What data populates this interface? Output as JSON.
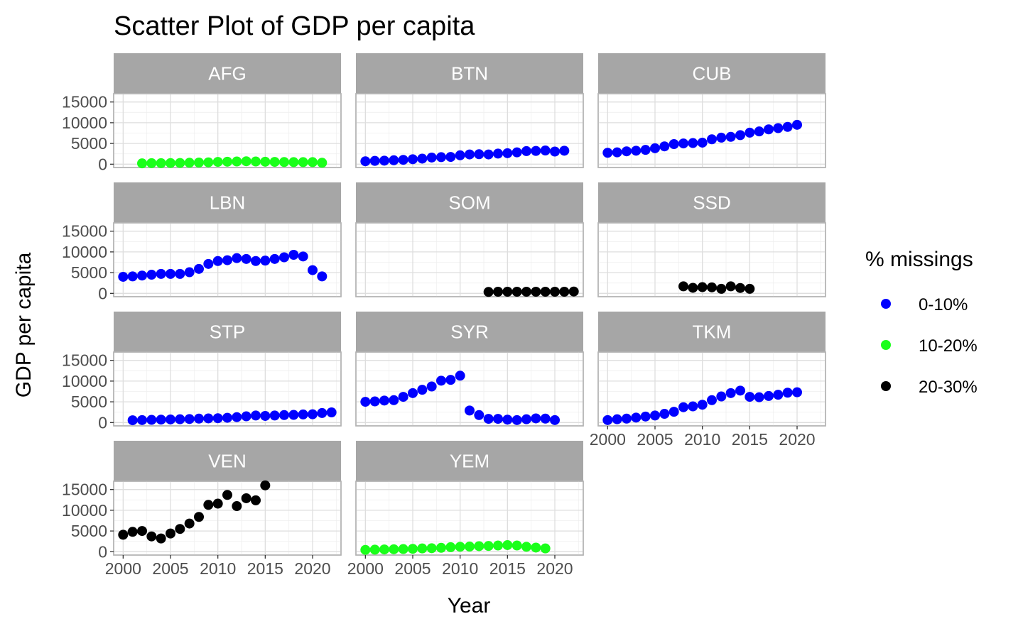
{
  "chart_data": {
    "type": "scatter",
    "title": "Scatter Plot of GDP per capita",
    "xlabel": "Year",
    "ylabel": "GDP per capita",
    "xlim": [
      1999,
      2023
    ],
    "ylim": [
      -800,
      17000
    ],
    "xticks": [
      2000,
      2005,
      2010,
      2015,
      2020
    ],
    "yticks": [
      0,
      5000,
      10000,
      15000
    ],
    "grid": true,
    "legend": {
      "title": "% missings",
      "position": "right",
      "entries": [
        {
          "label": "0-10%",
          "color": "#0000ff"
        },
        {
          "label": "10-20%",
          "color": "#1aff1a"
        },
        {
          "label": "20-30%",
          "color": "#000000"
        }
      ]
    },
    "panels": [
      {
        "name": "AFG",
        "group": "10-20%",
        "x": [
          2002,
          2003,
          2004,
          2005,
          2006,
          2007,
          2008,
          2009,
          2010,
          2011,
          2012,
          2013,
          2014,
          2015,
          2016,
          2017,
          2018,
          2019,
          2020,
          2021
        ],
        "y": [
          200,
          250,
          250,
          280,
          300,
          350,
          400,
          450,
          550,
          600,
          650,
          700,
          650,
          600,
          550,
          520,
          500,
          500,
          500,
          350
        ]
      },
      {
        "name": "BTN",
        "group": "0-10%",
        "x": [
          2000,
          2001,
          2002,
          2003,
          2004,
          2005,
          2006,
          2007,
          2008,
          2009,
          2010,
          2011,
          2012,
          2013,
          2014,
          2015,
          2016,
          2017,
          2018,
          2019,
          2020,
          2021
        ],
        "y": [
          700,
          800,
          850,
          950,
          1050,
          1200,
          1350,
          1600,
          1700,
          1750,
          2150,
          2350,
          2400,
          2350,
          2550,
          2650,
          2850,
          3150,
          3200,
          3300,
          3050,
          3250
        ]
      },
      {
        "name": "CUB",
        "group": "0-10%",
        "x": [
          2000,
          2001,
          2002,
          2003,
          2004,
          2005,
          2006,
          2007,
          2008,
          2009,
          2010,
          2011,
          2012,
          2013,
          2014,
          2015,
          2016,
          2017,
          2018,
          2019,
          2020
        ],
        "y": [
          2750,
          2850,
          3100,
          3250,
          3450,
          3850,
          4300,
          4850,
          5000,
          5100,
          5200,
          6000,
          6400,
          6600,
          7000,
          7600,
          7900,
          8400,
          8700,
          9000,
          9500
        ]
      },
      {
        "name": "LBN",
        "group": "0-10%",
        "x": [
          2000,
          2001,
          2002,
          2003,
          2004,
          2005,
          2006,
          2007,
          2008,
          2009,
          2010,
          2011,
          2012,
          2013,
          2014,
          2015,
          2016,
          2017,
          2018,
          2019,
          2020,
          2021
        ],
        "y": [
          4000,
          4100,
          4300,
          4500,
          4700,
          4700,
          4700,
          5100,
          5900,
          7100,
          7800,
          8000,
          8500,
          8300,
          7800,
          7900,
          8300,
          8700,
          9300,
          8900,
          5600,
          4100
        ]
      },
      {
        "name": "SOM",
        "group": "20-30%",
        "x": [
          2013,
          2014,
          2015,
          2016,
          2017,
          2018,
          2019,
          2020,
          2021,
          2022
        ],
        "y": [
          350,
          400,
          400,
          400,
          400,
          400,
          400,
          400,
          400,
          450
        ]
      },
      {
        "name": "SSD",
        "group": "20-30%",
        "x": [
          2008,
          2009,
          2010,
          2011,
          2012,
          2013,
          2014,
          2015
        ],
        "y": [
          1700,
          1350,
          1500,
          1450,
          1100,
          1700,
          1300,
          1100
        ]
      },
      {
        "name": "STP",
        "group": "0-10%",
        "x": [
          2001,
          2002,
          2003,
          2004,
          2005,
          2006,
          2007,
          2008,
          2009,
          2010,
          2011,
          2012,
          2013,
          2014,
          2015,
          2016,
          2017,
          2018,
          2019,
          2020,
          2021,
          2022
        ],
        "y": [
          550,
          600,
          650,
          700,
          750,
          800,
          850,
          950,
          1000,
          1050,
          1150,
          1300,
          1500,
          1700,
          1600,
          1700,
          1800,
          1850,
          1950,
          2000,
          2300,
          2450
        ]
      },
      {
        "name": "SYR",
        "group": "0-10%",
        "x": [
          2000,
          2001,
          2002,
          2003,
          2004,
          2005,
          2006,
          2007,
          2008,
          2009,
          2010,
          2011,
          2012,
          2013,
          2014,
          2015,
          2016,
          2017,
          2018,
          2019,
          2020
        ],
        "y": [
          5000,
          5100,
          5300,
          5400,
          6200,
          7100,
          7900,
          8700,
          10100,
          10300,
          11300,
          2900,
          1800,
          900,
          900,
          700,
          600,
          800,
          1000,
          950,
          600
        ]
      },
      {
        "name": "TKM",
        "group": "0-10%",
        "x": [
          2000,
          2001,
          2002,
          2003,
          2004,
          2005,
          2006,
          2007,
          2008,
          2009,
          2010,
          2011,
          2012,
          2013,
          2014,
          2015,
          2016,
          2017,
          2018,
          2019,
          2020
        ],
        "y": [
          600,
          800,
          950,
          1200,
          1450,
          1700,
          2100,
          2600,
          3700,
          3900,
          4300,
          5400,
          6300,
          7100,
          7700,
          6200,
          6100,
          6400,
          6700,
          7200,
          7300
        ]
      },
      {
        "name": "VEN",
        "group": "20-30%",
        "x": [
          2000,
          2001,
          2002,
          2003,
          2004,
          2005,
          2006,
          2007,
          2008,
          2009,
          2010,
          2011,
          2012,
          2013,
          2014,
          2015
        ],
        "y": [
          4100,
          4800,
          5000,
          3700,
          3200,
          4400,
          5500,
          6800,
          8400,
          11300,
          11600,
          13700,
          11000,
          12900,
          12400,
          16000
        ]
      },
      {
        "name": "YEM",
        "group": "10-20%",
        "x": [
          2000,
          2001,
          2002,
          2003,
          2004,
          2005,
          2006,
          2007,
          2008,
          2009,
          2010,
          2011,
          2012,
          2013,
          2014,
          2015,
          2016,
          2017,
          2018,
          2019
        ],
        "y": [
          450,
          500,
          550,
          600,
          650,
          700,
          800,
          850,
          950,
          1100,
          1200,
          1250,
          1350,
          1400,
          1500,
          1600,
          1500,
          1200,
          1000,
          800
        ]
      }
    ]
  }
}
